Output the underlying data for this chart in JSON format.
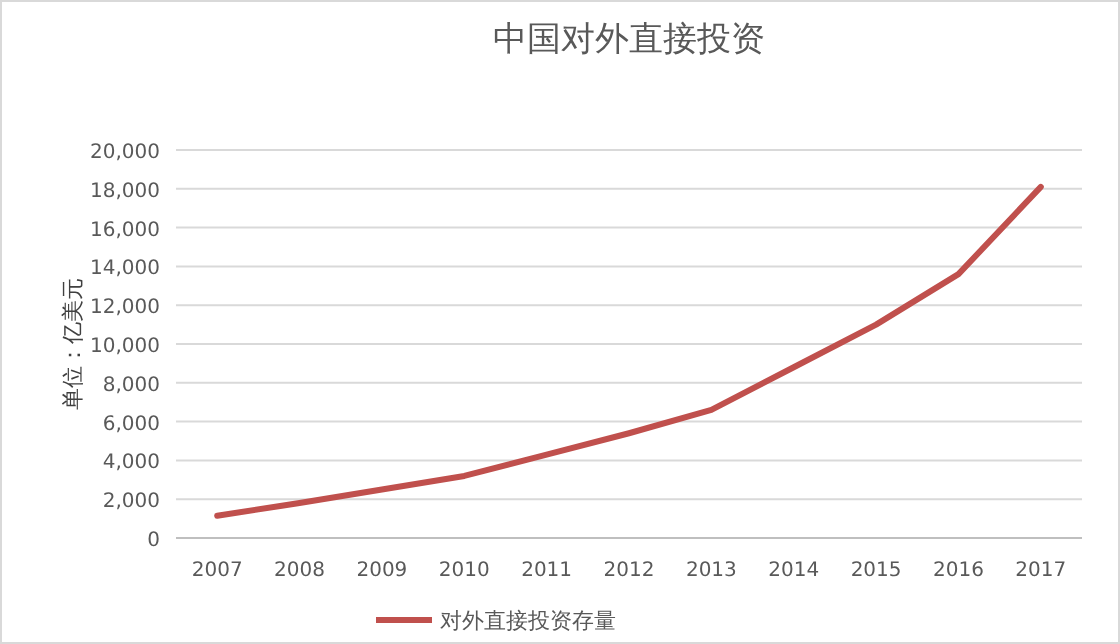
{
  "chart_data": {
    "type": "line",
    "title": "中国对外直接投资",
    "ylabel": "单位：亿美元",
    "categories": [
      "2007",
      "2008",
      "2009",
      "2010",
      "2011",
      "2012",
      "2013",
      "2014",
      "2015",
      "2016",
      "2017"
    ],
    "series": [
      {
        "name": "对外直接投资存量",
        "color": "#c0504d",
        "values": [
          1150,
          1800,
          2500,
          3200,
          4300,
          5400,
          6600,
          8800,
          11000,
          13600,
          18100
        ]
      }
    ],
    "ylim": [
      0,
      20000
    ],
    "yticks": [
      {
        "value": 0,
        "label": "0"
      },
      {
        "value": 2000,
        "label": "2,000"
      },
      {
        "value": 4000,
        "label": "4,000"
      },
      {
        "value": 6000,
        "label": "6,000"
      },
      {
        "value": 8000,
        "label": "8,000"
      },
      {
        "value": 10000,
        "label": "10,000"
      },
      {
        "value": 12000,
        "label": "12,000"
      },
      {
        "value": 14000,
        "label": "14,000"
      },
      {
        "value": 16000,
        "label": "16,000"
      },
      {
        "value": 18000,
        "label": "18,000"
      },
      {
        "value": 20000,
        "label": "20,000"
      }
    ],
    "grid": "y",
    "legend": "bottom",
    "marker": "none",
    "line_style": "solid"
  }
}
